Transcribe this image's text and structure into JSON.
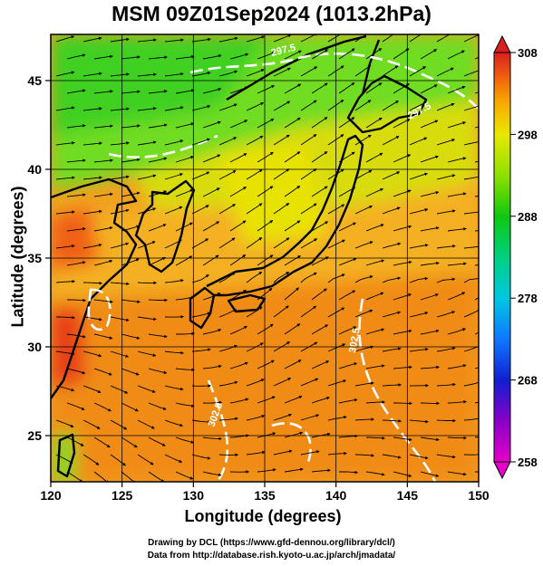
{
  "title": "MSM 09Z01Sep2024 (1013.2hPa)",
  "xlabel": "Longitude (degrees)",
  "ylabel": "Latitude  (degrees)",
  "credits": [
    "Drawing by DCL (https://www.gfd-dennou.org/library/dcl/)",
    "Data from http://database.rish.kyoto-u.ac.jp/arch/jmadata/"
  ],
  "chart_data": {
    "type": "heatmap",
    "variable": "surface temperature with wind streamlines",
    "xlim": [
      120,
      150
    ],
    "ylim": [
      22.4,
      47.6
    ],
    "xticks": [
      120,
      125,
      130,
      135,
      140,
      145,
      150
    ],
    "yticks": [
      25,
      30,
      35,
      40,
      45
    ],
    "grid": true,
    "colorbar": {
      "min": 258,
      "max": 308,
      "ticks": [
        258,
        268,
        278,
        288,
        298,
        308
      ],
      "stops": [
        {
          "v": 258,
          "c": "#e600c8"
        },
        {
          "v": 263,
          "c": "#8800c8"
        },
        {
          "v": 268,
          "c": "#1020d0"
        },
        {
          "v": 273,
          "c": "#1078ff"
        },
        {
          "v": 278,
          "c": "#00c8e0"
        },
        {
          "v": 283,
          "c": "#00d080"
        },
        {
          "v": 288,
          "c": "#10c810"
        },
        {
          "v": 293,
          "c": "#90e000"
        },
        {
          "v": 298,
          "c": "#e8e800"
        },
        {
          "v": 302,
          "c": "#f8a800"
        },
        {
          "v": 305,
          "c": "#f06010"
        },
        {
          "v": 308,
          "c": "#d82020"
        }
      ]
    },
    "contour_labels": [
      "297.5",
      "297.5",
      "302.5",
      "302.5"
    ],
    "colors": {
      "land": "#000000",
      "contour": "#ffffff",
      "streamline": "#000000"
    }
  }
}
